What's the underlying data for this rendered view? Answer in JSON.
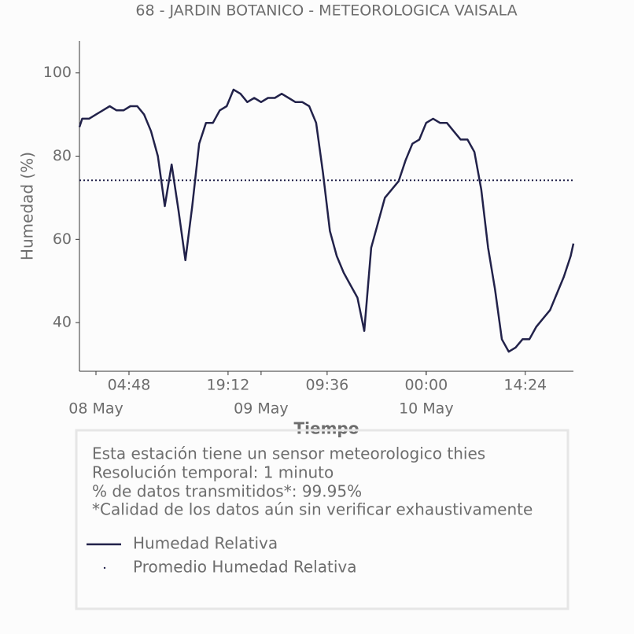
{
  "chart_data": {
    "type": "line",
    "title": "68 - JARDIN BOTANICO - METEOROLOGICA VAISALA",
    "x_label": "Tiempo",
    "y_label": "Humedad (%)",
    "x": [
      "07 May 21:36",
      "07 May 22:00",
      "07 May 23:00",
      "08 May 00:00",
      "08 May 01:00",
      "08 May 02:00",
      "08 May 03:00",
      "08 May 04:00",
      "08 May 05:00",
      "08 May 06:00",
      "08 May 07:00",
      "08 May 08:00",
      "08 May 09:00",
      "08 May 10:00",
      "08 May 11:00",
      "08 May 12:00",
      "08 May 13:00",
      "08 May 14:00",
      "08 May 15:00",
      "08 May 16:00",
      "08 May 17:00",
      "08 May 18:00",
      "08 May 19:00",
      "08 May 20:00",
      "08 May 21:00",
      "08 May 22:00",
      "08 May 23:00",
      "09 May 00:00",
      "09 May 01:00",
      "09 May 02:00",
      "09 May 03:00",
      "09 May 04:00",
      "09 May 05:00",
      "09 May 06:00",
      "09 May 07:00",
      "09 May 08:00",
      "09 May 09:00",
      "09 May 10:00",
      "09 May 11:00",
      "09 May 12:00",
      "09 May 13:00",
      "09 May 14:00",
      "09 May 15:00",
      "09 May 16:00",
      "09 May 17:00",
      "09 May 18:00",
      "09 May 19:00",
      "09 May 20:00",
      "09 May 21:00",
      "09 May 22:00",
      "09 May 23:00",
      "10 May 00:00",
      "10 May 01:00",
      "10 May 02:00",
      "10 May 03:00",
      "10 May 04:00",
      "10 May 05:00",
      "10 May 06:00",
      "10 May 07:00",
      "10 May 08:00",
      "10 May 09:00",
      "10 May 10:00",
      "10 May 11:00",
      "10 May 12:00",
      "10 May 13:00",
      "10 May 14:00",
      "10 May 15:00",
      "10 May 16:00",
      "10 May 17:00",
      "10 May 18:00",
      "10 May 19:00",
      "10 May 20:00",
      "10 May 21:00",
      "10 May 21:24"
    ],
    "series": [
      {
        "name": "Humedad Relativa",
        "color": "#22224a",
        "values": [
          87,
          89,
          89,
          90,
          91,
          92,
          91,
          91,
          92,
          92,
          90,
          86,
          80,
          68,
          78,
          67,
          55,
          68,
          83,
          88,
          88,
          91,
          92,
          96,
          95,
          93,
          94,
          93,
          94,
          94,
          95,
          94,
          93,
          93,
          92,
          88,
          76,
          62,
          56,
          52,
          49,
          46,
          38,
          58,
          64,
          70,
          72,
          74,
          79,
          83,
          84,
          88,
          89,
          88,
          88,
          86,
          84,
          84,
          81,
          72,
          58,
          48,
          36,
          33,
          34,
          36,
          36,
          39,
          41,
          43,
          47,
          51,
          56,
          59
        ]
      }
    ],
    "mean": {
      "name": "Promedio Humedad Relativa",
      "color": "#22224a",
      "value": 74.2
    },
    "xlim": [
      "07 May 21:36",
      "10 May 21:24"
    ],
    "xticks": [
      {
        "value": "08 May 04:48",
        "label": "04:48"
      },
      {
        "value": "08 May 19:12",
        "label": "19:12"
      },
      {
        "value": "09 May 09:36",
        "label": "09:36"
      },
      {
        "value": "10 May 00:00",
        "label": "00:00"
      },
      {
        "value": "10 May 14:24",
        "label": "14:24"
      }
    ],
    "date_ticks": [
      {
        "value": "08 May 00:00",
        "label": "08 May"
      },
      {
        "value": "09 May 00:00",
        "label": "09 May"
      },
      {
        "value": "10 May 00:00",
        "label": "10 May"
      }
    ],
    "ylim": [
      28.3,
      107.7
    ],
    "yticks": [
      40,
      60,
      80,
      100
    ]
  },
  "info": [
    "Esta estación tiene un sensor meteorologico thies",
    "Resolución temporal: 1 minuto",
    "% de datos transmitidos*: 99.95%",
    "*Calidad de los datos aún sin verificar exhaustivamente"
  ]
}
